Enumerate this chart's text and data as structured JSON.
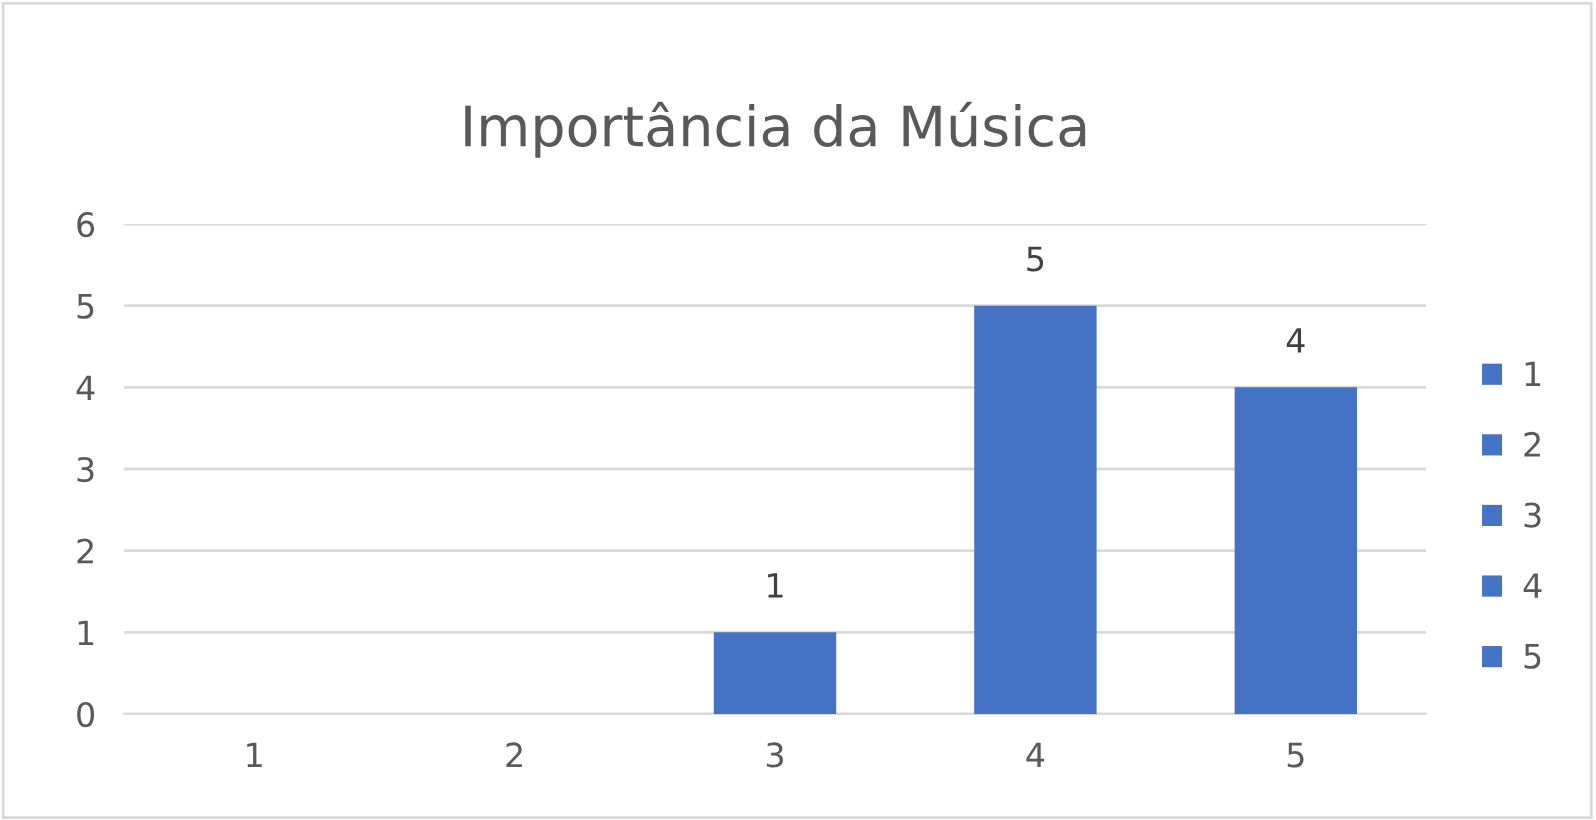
{
  "chart_data": {
    "type": "bar",
    "title": "Importância da Música",
    "categories": [
      "1",
      "2",
      "3",
      "4",
      "5"
    ],
    "series": [
      {
        "name": "1",
        "color": "#4472c4",
        "values": [
          0,
          null,
          null,
          null,
          null
        ],
        "value_labels": [
          null,
          null,
          null,
          null,
          null
        ]
      },
      {
        "name": "2",
        "color": "#4472c4",
        "values": [
          null,
          0,
          null,
          null,
          null
        ],
        "value_labels": [
          null,
          null,
          null,
          null,
          null
        ]
      },
      {
        "name": "3",
        "color": "#4472c4",
        "values": [
          null,
          null,
          1,
          null,
          null
        ],
        "value_labels": [
          null,
          null,
          "1",
          null,
          null
        ]
      },
      {
        "name": "4",
        "color": "#4472c4",
        "values": [
          null,
          null,
          null,
          5,
          null
        ],
        "value_labels": [
          null,
          null,
          null,
          "5",
          null
        ]
      },
      {
        "name": "5",
        "color": "#4472c4",
        "values": [
          null,
          null,
          null,
          null,
          4
        ],
        "value_labels": [
          null,
          null,
          null,
          null,
          "4"
        ]
      }
    ],
    "ylim": [
      0,
      6
    ],
    "yticks": [
      0,
      1,
      2,
      3,
      4,
      5,
      6
    ],
    "grid": "y",
    "legend": "right"
  }
}
